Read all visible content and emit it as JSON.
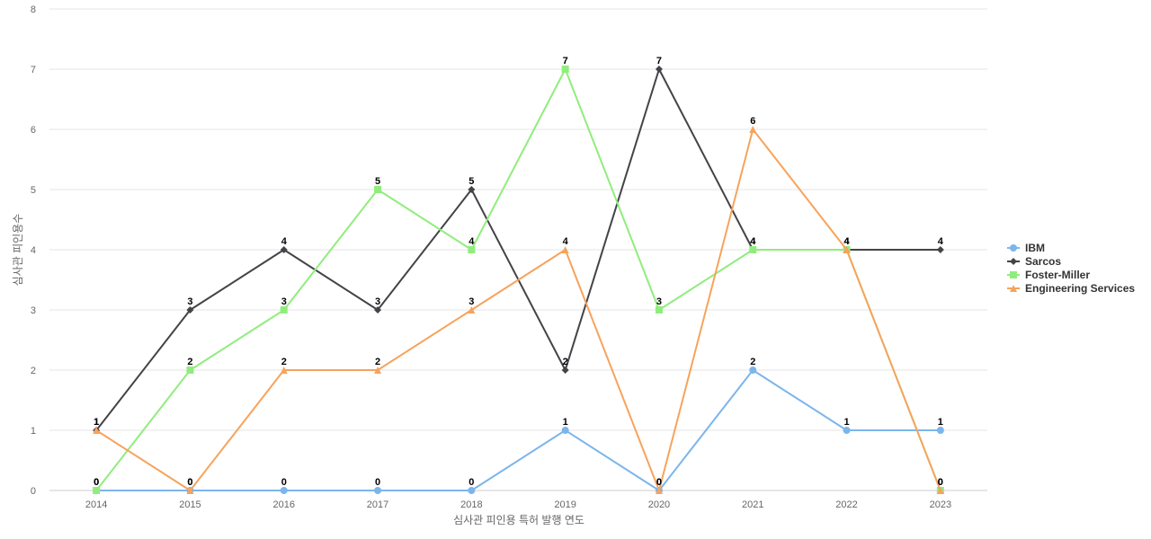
{
  "chart_data": {
    "type": "line",
    "title": "",
    "xlabel": "심사관 피인용 특허 발행 연도",
    "ylabel": "심사관 피인용수",
    "categories": [
      "2014",
      "2015",
      "2016",
      "2017",
      "2018",
      "2019",
      "2020",
      "2021",
      "2022",
      "2023"
    ],
    "ylim": [
      0,
      8
    ],
    "yticks": [
      "0",
      "1",
      "2",
      "3",
      "4",
      "5",
      "6",
      "7",
      "8"
    ],
    "grid": true,
    "legend_position": "right",
    "series": [
      {
        "name": "IBM",
        "color": "#7cb5ec",
        "marker": "circle",
        "values": [
          0,
          0,
          0,
          0,
          0,
          1,
          0,
          2,
          1,
          1
        ]
      },
      {
        "name": "Sarcos",
        "color": "#434348",
        "marker": "diamond",
        "values": [
          1,
          3,
          4,
          3,
          5,
          2,
          7,
          4,
          4,
          4
        ]
      },
      {
        "name": "Foster-Miller",
        "color": "#90ed7d",
        "marker": "square",
        "values": [
          0,
          2,
          3,
          5,
          4,
          7,
          3,
          4,
          4,
          0
        ]
      },
      {
        "name": "Engineering Services",
        "color": "#f7a35c",
        "marker": "triangle",
        "values": [
          1,
          0,
          2,
          2,
          3,
          4,
          0,
          6,
          4,
          0
        ]
      }
    ]
  }
}
